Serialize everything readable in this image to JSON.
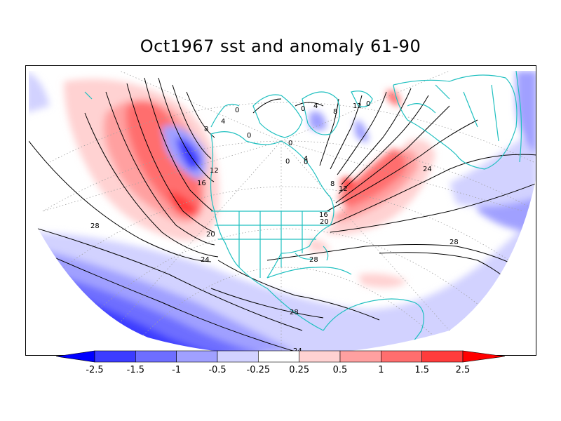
{
  "title": "Oct1967 sst and anomaly 61-90",
  "colors": {
    "coastline": "#20c0c0",
    "contour": "#000000",
    "graticule": "#a0a0a0"
  },
  "colorbar": {
    "levels": [
      "-2.5",
      "-1.5",
      "-1",
      "-0.5",
      "-0.25",
      "0.25",
      "0.5",
      "1",
      "1.5",
      "2.5"
    ],
    "fills": [
      "#0000ff",
      "#3c3cff",
      "#6e6eff",
      "#a0a0ff",
      "#d2d2ff",
      "#ffffff",
      "#ffd2d2",
      "#ffa0a0",
      "#ff6e6e",
      "#ff3c3c",
      "#ff0000"
    ]
  },
  "contour_labels": [
    "28",
    "24",
    "20",
    "16",
    "12",
    "8",
    "4",
    "0",
    "28",
    "28",
    "28",
    "24",
    "24",
    "20",
    "16",
    "12",
    "8",
    "4",
    "0",
    "0",
    "0",
    "4",
    "8",
    "12",
    "0",
    "0",
    "0"
  ]
}
